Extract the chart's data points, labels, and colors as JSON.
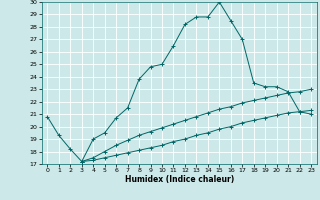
{
  "xlabel": "Humidex (Indice chaleur)",
  "bg_color": "#cce8e8",
  "grid_color": "#ffffff",
  "line_color": "#006666",
  "xlim": [
    -0.5,
    23.5
  ],
  "ylim": [
    17,
    30
  ],
  "xticks": [
    0,
    1,
    2,
    3,
    4,
    5,
    6,
    7,
    8,
    9,
    10,
    11,
    12,
    13,
    14,
    15,
    16,
    17,
    18,
    19,
    20,
    21,
    22,
    23
  ],
  "yticks": [
    17,
    18,
    19,
    20,
    21,
    22,
    23,
    24,
    25,
    26,
    27,
    28,
    29,
    30
  ],
  "line1_x": [
    0,
    1,
    2,
    3,
    4,
    5,
    6,
    7,
    8,
    9,
    10,
    11,
    12,
    13,
    14,
    15,
    16,
    17,
    18,
    19,
    20,
    21,
    22,
    23
  ],
  "line1_y": [
    20.8,
    19.3,
    18.2,
    17.2,
    19.0,
    19.5,
    20.7,
    21.5,
    23.8,
    24.8,
    25.0,
    26.5,
    28.2,
    28.8,
    28.8,
    30.0,
    28.5,
    27.0,
    23.5,
    23.2,
    23.2,
    22.8,
    21.2,
    21.0
  ],
  "line2_x": [
    3,
    4,
    5,
    6,
    7,
    8,
    9,
    10,
    11,
    12,
    13,
    14,
    15,
    16,
    17,
    18,
    19,
    20,
    21,
    22,
    23
  ],
  "line2_y": [
    17.2,
    17.3,
    17.5,
    17.7,
    17.9,
    18.1,
    18.3,
    18.5,
    18.8,
    19.0,
    19.3,
    19.5,
    19.8,
    20.0,
    20.3,
    20.5,
    20.7,
    20.9,
    21.1,
    21.2,
    21.3
  ],
  "line3_x": [
    3,
    4,
    5,
    6,
    7,
    8,
    9,
    10,
    11,
    12,
    13,
    14,
    15,
    16,
    17,
    18,
    19,
    20,
    21,
    22,
    23
  ],
  "line3_y": [
    17.2,
    17.5,
    18.0,
    18.5,
    18.9,
    19.3,
    19.6,
    19.9,
    20.2,
    20.5,
    20.8,
    21.1,
    21.4,
    21.6,
    21.9,
    22.1,
    22.3,
    22.5,
    22.7,
    22.8,
    23.0
  ]
}
